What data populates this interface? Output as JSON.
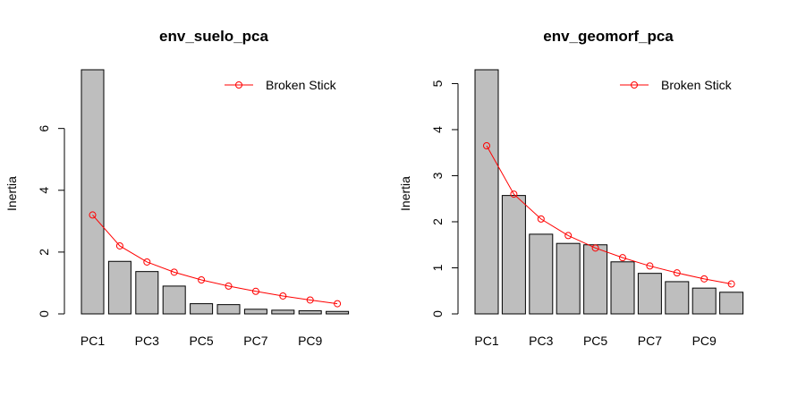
{
  "chart_data": [
    {
      "type": "bar",
      "title": "env_suelo_pca",
      "xlabel": "",
      "ylabel": "Inertia",
      "categories": [
        "PC1",
        "PC2",
        "PC3",
        "PC4",
        "PC5",
        "PC6",
        "PC7",
        "PC8",
        "PC9",
        "PC10"
      ],
      "tick_labels_shown": [
        "PC1",
        "PC3",
        "PC5",
        "PC7",
        "PC9"
      ],
      "yticks": [
        0,
        2,
        4,
        6
      ],
      "ylim": [
        0,
        7.9
      ],
      "series": [
        {
          "values": [
            7.9,
            1.7,
            1.37,
            0.9,
            0.33,
            0.3,
            0.15,
            0.12,
            0.1,
            0.08
          ]
        },
        {
          "name": "Broken Stick",
          "line": true,
          "values": [
            3.2,
            2.2,
            1.68,
            1.35,
            1.1,
            0.9,
            0.73,
            0.58,
            0.45,
            0.33
          ]
        }
      ],
      "legend": {
        "position": "top-right",
        "label": "Broken Stick"
      },
      "colors": {
        "bar_fill": "#bebebe",
        "bar_stroke": "#000000",
        "broken_stick": "#ff0000"
      },
      "grid": false
    },
    {
      "type": "bar",
      "title": "env_geomorf_pca",
      "xlabel": "",
      "ylabel": "Inertia",
      "categories": [
        "PC1",
        "PC2",
        "PC3",
        "PC4",
        "PC5",
        "PC6",
        "PC7",
        "PC8",
        "PC9",
        "PC10"
      ],
      "tick_labels_shown": [
        "PC1",
        "PC3",
        "PC5",
        "PC7",
        "PC9"
      ],
      "yticks": [
        0,
        1,
        2,
        3,
        4,
        5
      ],
      "ylim": [
        0,
        5.3
      ],
      "series": [
        {
          "values": [
            5.3,
            2.57,
            1.73,
            1.53,
            1.5,
            1.13,
            0.88,
            0.7,
            0.56,
            0.47
          ]
        },
        {
          "name": "Broken Stick",
          "line": true,
          "values": [
            3.65,
            2.6,
            2.06,
            1.7,
            1.43,
            1.22,
            1.04,
            0.89,
            0.76,
            0.65
          ]
        }
      ],
      "legend": {
        "position": "top-right",
        "label": "Broken Stick"
      },
      "colors": {
        "bar_fill": "#bebebe",
        "bar_stroke": "#000000",
        "broken_stick": "#ff0000"
      },
      "grid": false
    }
  ]
}
